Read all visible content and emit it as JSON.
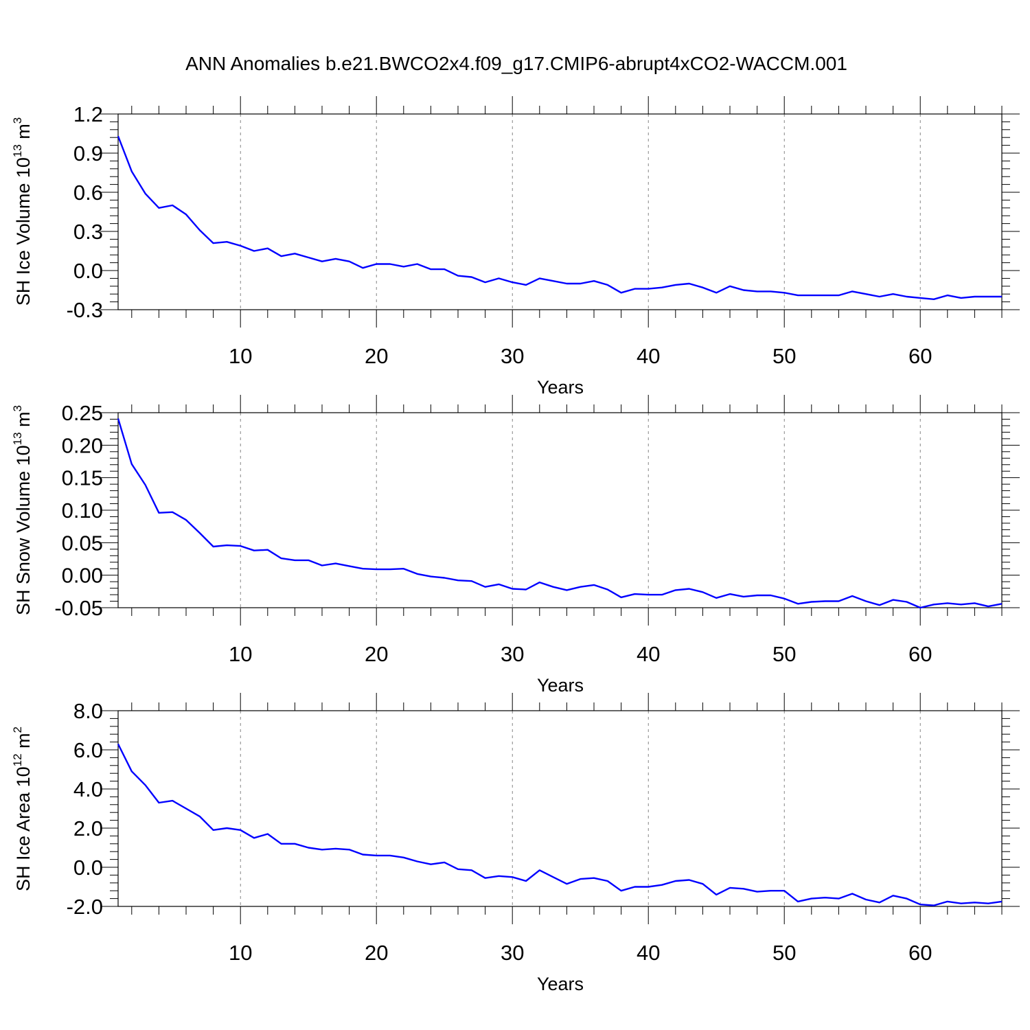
{
  "title": "ANN Anomalies b.e21.BWCO2x4.f09_g17.CMIP6-abrupt4xCO2-WACCM.001",
  "colors": {
    "line": "#0000ff",
    "axis": "#000000",
    "grid": "#000000"
  },
  "chart_data": [
    {
      "type": "line",
      "ylabel": {
        "base": "SH Ice Volume 10",
        "exp": "13",
        "unit": " m",
        "unit_exp": "3"
      },
      "xlabel": "Years",
      "xlim": [
        1,
        66
      ],
      "ylim": [
        -0.3,
        1.2
      ],
      "yticks": [
        -0.3,
        0.0,
        0.3,
        0.6,
        0.9,
        1.2
      ],
      "ytick_labels": [
        "-0.3",
        "0.0",
        "0.3",
        "0.6",
        "0.9",
        "1.2"
      ],
      "xticks": [
        10,
        20,
        30,
        40,
        50,
        60
      ],
      "xtick_labels": [
        "10",
        "20",
        "30",
        "40",
        "50",
        "60"
      ],
      "grid": "vertical dashed at major x ticks",
      "x": [
        1,
        2,
        3,
        4,
        5,
        6,
        7,
        8,
        9,
        10,
        11,
        12,
        13,
        14,
        15,
        16,
        17,
        18,
        19,
        20,
        21,
        22,
        23,
        24,
        25,
        26,
        27,
        28,
        29,
        30,
        31,
        32,
        33,
        34,
        35,
        36,
        37,
        38,
        39,
        40,
        41,
        42,
        43,
        44,
        45,
        46,
        47,
        48,
        49,
        50,
        51,
        52,
        53,
        54,
        55,
        56,
        57,
        58,
        59,
        60,
        61,
        62,
        63,
        64,
        65,
        66
      ],
      "values": [
        1.03,
        0.76,
        0.59,
        0.48,
        0.5,
        0.43,
        0.31,
        0.21,
        0.22,
        0.19,
        0.15,
        0.17,
        0.11,
        0.13,
        0.1,
        0.07,
        0.09,
        0.07,
        0.02,
        0.05,
        0.05,
        0.03,
        0.05,
        0.01,
        0.01,
        -0.04,
        -0.05,
        -0.09,
        -0.06,
        -0.09,
        -0.11,
        -0.06,
        -0.08,
        -0.1,
        -0.1,
        -0.08,
        -0.11,
        -0.17,
        -0.14,
        -0.14,
        -0.13,
        -0.11,
        -0.1,
        -0.13,
        -0.17,
        -0.12,
        -0.15,
        -0.16,
        -0.16,
        -0.17,
        -0.19,
        -0.19,
        -0.19,
        -0.19,
        -0.16,
        -0.18,
        -0.2,
        -0.18,
        -0.2,
        -0.21,
        -0.22,
        -0.19,
        -0.21,
        -0.2,
        -0.2,
        -0.2
      ]
    },
    {
      "type": "line",
      "ylabel": {
        "base": "SH Snow Volume 10",
        "exp": "13",
        "unit": " m",
        "unit_exp": "3"
      },
      "xlabel": "Years",
      "xlim": [
        1,
        66
      ],
      "ylim": [
        -0.05,
        0.25
      ],
      "yticks": [
        -0.05,
        0.0,
        0.05,
        0.1,
        0.15,
        0.2,
        0.25
      ],
      "ytick_labels": [
        "-0.05",
        "0.00",
        "0.05",
        "0.10",
        "0.15",
        "0.20",
        "0.25"
      ],
      "xticks": [
        10,
        20,
        30,
        40,
        50,
        60
      ],
      "xtick_labels": [
        "10",
        "20",
        "30",
        "40",
        "50",
        "60"
      ],
      "grid": "vertical dashed at major x ticks",
      "x": [
        1,
        2,
        3,
        4,
        5,
        6,
        7,
        8,
        9,
        10,
        11,
        12,
        13,
        14,
        15,
        16,
        17,
        18,
        19,
        20,
        21,
        22,
        23,
        24,
        25,
        26,
        27,
        28,
        29,
        30,
        31,
        32,
        33,
        34,
        35,
        36,
        37,
        38,
        39,
        40,
        41,
        42,
        43,
        44,
        45,
        46,
        47,
        48,
        49,
        50,
        51,
        52,
        53,
        54,
        55,
        56,
        57,
        58,
        59,
        60,
        61,
        62,
        63,
        64,
        65,
        66
      ],
      "values": [
        0.241,
        0.171,
        0.139,
        0.096,
        0.097,
        0.085,
        0.065,
        0.044,
        0.046,
        0.045,
        0.038,
        0.039,
        0.026,
        0.023,
        0.023,
        0.015,
        0.018,
        0.014,
        0.01,
        0.009,
        0.009,
        0.01,
        0.002,
        -0.002,
        -0.004,
        -0.008,
        -0.009,
        -0.018,
        -0.014,
        -0.021,
        -0.022,
        -0.011,
        -0.018,
        -0.023,
        -0.018,
        -0.015,
        -0.022,
        -0.034,
        -0.029,
        -0.03,
        -0.03,
        -0.023,
        -0.021,
        -0.026,
        -0.035,
        -0.029,
        -0.033,
        -0.031,
        -0.031,
        -0.036,
        -0.044,
        -0.041,
        -0.04,
        -0.04,
        -0.032,
        -0.04,
        -0.046,
        -0.038,
        -0.041,
        -0.05,
        -0.045,
        -0.043,
        -0.045,
        -0.043,
        -0.048,
        -0.044
      ]
    },
    {
      "type": "line",
      "ylabel": {
        "base": "SH Ice Area 10",
        "exp": "12",
        "unit": " m",
        "unit_exp": "2"
      },
      "xlabel": "Years",
      "xlim": [
        1,
        66
      ],
      "ylim": [
        -2.0,
        8.0
      ],
      "yticks": [
        -2.0,
        0.0,
        2.0,
        4.0,
        6.0,
        8.0
      ],
      "ytick_labels": [
        "-2.0",
        "0.0",
        "2.0",
        "4.0",
        "6.0",
        "8.0"
      ],
      "xticks": [
        10,
        20,
        30,
        40,
        50,
        60
      ],
      "xtick_labels": [
        "10",
        "20",
        "30",
        "40",
        "50",
        "60"
      ],
      "grid": "vertical dashed at major x ticks",
      "x": [
        1,
        2,
        3,
        4,
        5,
        6,
        7,
        8,
        9,
        10,
        11,
        12,
        13,
        14,
        15,
        16,
        17,
        18,
        19,
        20,
        21,
        22,
        23,
        24,
        25,
        26,
        27,
        28,
        29,
        30,
        31,
        32,
        33,
        34,
        35,
        36,
        37,
        38,
        39,
        40,
        41,
        42,
        43,
        44,
        45,
        46,
        47,
        48,
        49,
        50,
        51,
        52,
        53,
        54,
        55,
        56,
        57,
        58,
        59,
        60,
        61,
        62,
        63,
        64,
        65,
        66
      ],
      "values": [
        6.3,
        4.9,
        4.2,
        3.3,
        3.4,
        3.0,
        2.6,
        1.9,
        2.0,
        1.9,
        1.5,
        1.7,
        1.2,
        1.2,
        1.0,
        0.9,
        0.95,
        0.9,
        0.65,
        0.6,
        0.6,
        0.5,
        0.3,
        0.15,
        0.25,
        -0.1,
        -0.15,
        -0.55,
        -0.45,
        -0.5,
        -0.7,
        -0.15,
        -0.5,
        -0.85,
        -0.6,
        -0.55,
        -0.7,
        -1.2,
        -1.0,
        -1.0,
        -0.9,
        -0.7,
        -0.65,
        -0.85,
        -1.4,
        -1.05,
        -1.1,
        -1.25,
        -1.2,
        -1.2,
        -1.75,
        -1.6,
        -1.55,
        -1.6,
        -1.35,
        -1.65,
        -1.8,
        -1.45,
        -1.6,
        -1.9,
        -1.95,
        -1.75,
        -1.85,
        -1.8,
        -1.85,
        -1.75
      ]
    }
  ]
}
